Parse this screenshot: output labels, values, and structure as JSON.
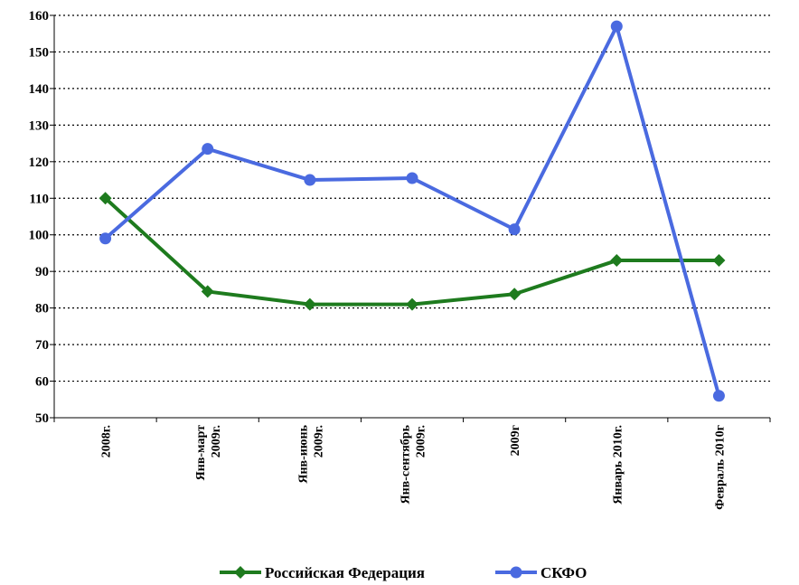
{
  "chart_data": {
    "type": "line",
    "categories": [
      [
        "2008г."
      ],
      [
        "Янв-март",
        "2009г."
      ],
      [
        "Янв-июнь",
        "2009г."
      ],
      [
        "Янв-сентябрь",
        "2009г."
      ],
      [
        "2009г"
      ],
      [
        "Январь 2010г."
      ],
      [
        "Февраль 2010г"
      ]
    ],
    "series": [
      {
        "name": "Российская Федерация",
        "color": "#1e7b1e",
        "marker": "diamond",
        "values": [
          110,
          84.5,
          81,
          81,
          83.8,
          93,
          93
        ]
      },
      {
        "name": "СКФО",
        "color": "#4a6ae0",
        "marker": "circle",
        "values": [
          99,
          123.5,
          115,
          115.5,
          101.5,
          157,
          56
        ]
      }
    ],
    "ylim": [
      50,
      160
    ],
    "yticks": [
      50,
      60,
      70,
      80,
      90,
      100,
      110,
      120,
      130,
      140,
      150,
      160
    ],
    "grid": true,
    "legend_position": "bottom"
  }
}
